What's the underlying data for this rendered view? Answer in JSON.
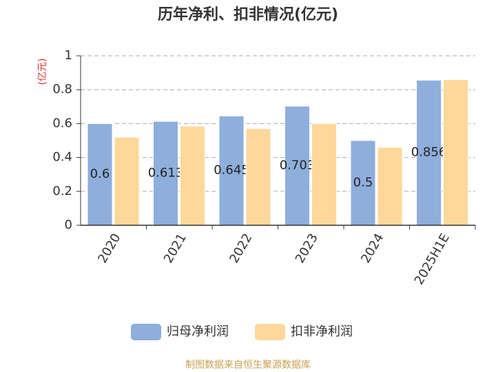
{
  "chart_data": {
    "type": "bar",
    "title": "历年净利、扣非情况(亿元)",
    "y_axis_label": "(亿元)",
    "source": "制图数据来自恒生聚源数据库",
    "categories": [
      "2020",
      "2021",
      "2022",
      "2023",
      "2024",
      "2025H1E"
    ],
    "series": [
      {
        "name": "归母净利润",
        "color": "#8eaedc",
        "values": [
          0.6,
          0.613,
          0.645,
          0.703,
          0.5,
          0.856
        ],
        "show_labels": true
      },
      {
        "name": "扣非净利润",
        "color": "#fdd89a",
        "values": [
          0.52,
          0.585,
          0.57,
          0.6,
          0.46,
          0.86
        ],
        "show_labels": false
      }
    ],
    "ylim": [
      0,
      1
    ],
    "yticks": [
      0,
      0.2,
      0.4,
      0.6,
      0.8,
      1
    ],
    "grid": true,
    "legend": "bottom"
  }
}
